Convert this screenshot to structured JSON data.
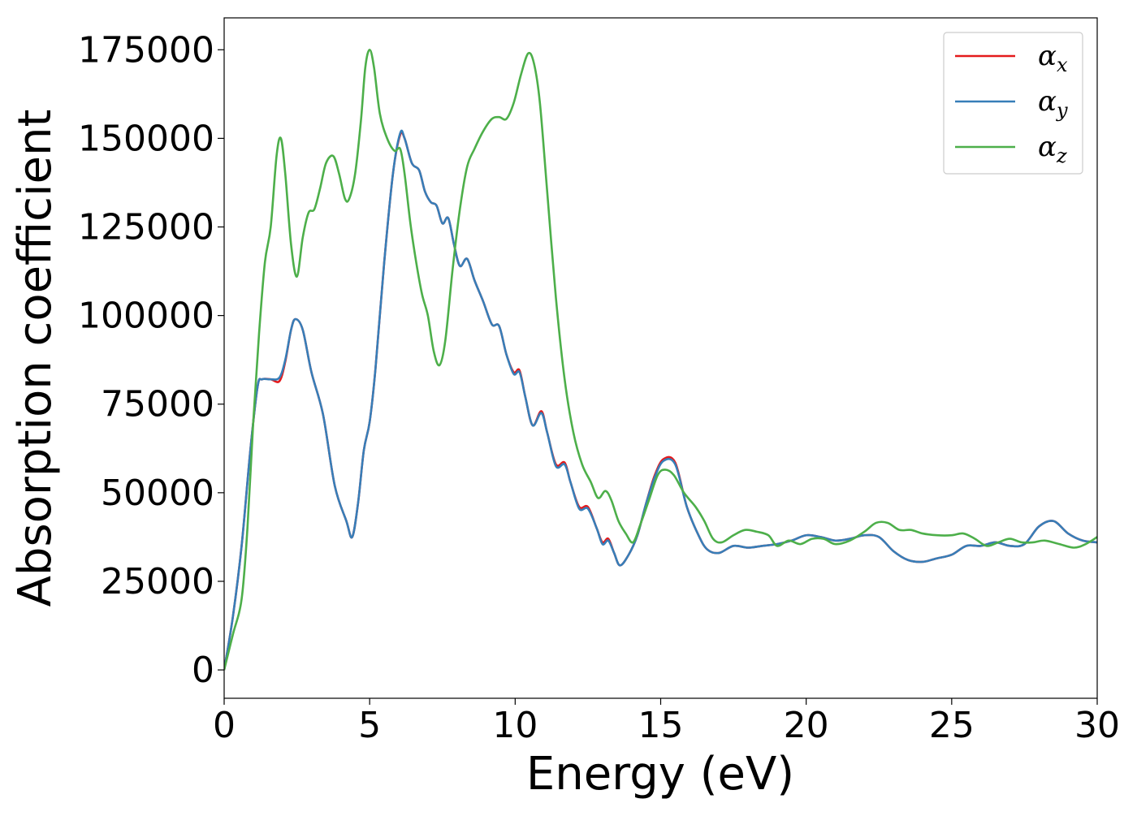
{
  "chart_data": {
    "type": "line",
    "title": "",
    "xlabel": "Energy (eV)",
    "ylabel": "Absorption coefficient",
    "xlim": [
      0,
      30
    ],
    "ylim": [
      -8000,
      184000
    ],
    "xticks": [
      0,
      5,
      10,
      15,
      20,
      25,
      30
    ],
    "xtick_labels": [
      "0",
      "5",
      "10",
      "15",
      "20",
      "25",
      "30"
    ],
    "yticks": [
      0,
      25000,
      50000,
      75000,
      100000,
      125000,
      150000,
      175000
    ],
    "ytick_labels": [
      "0",
      "25000",
      "50000",
      "75000",
      "100000",
      "125000",
      "150000",
      "175000"
    ],
    "grid": false,
    "legend_position": "top-right",
    "series": [
      {
        "name": "α_x",
        "legend_symbol": "α",
        "legend_subscript": "x",
        "color": "#e41a1c",
        "points": [
          [
            0,
            0
          ],
          [
            0.3,
            15000
          ],
          [
            0.6,
            35000
          ],
          [
            0.9,
            62000
          ],
          [
            1.15,
            80000
          ],
          [
            1.3,
            82000
          ],
          [
            1.6,
            82000
          ],
          [
            1.9,
            81500
          ],
          [
            2.1,
            87000
          ],
          [
            2.3,
            96000
          ],
          [
            2.45,
            99000
          ],
          [
            2.7,
            96000
          ],
          [
            3.0,
            84000
          ],
          [
            3.4,
            72000
          ],
          [
            3.8,
            52000
          ],
          [
            4.2,
            42000
          ],
          [
            4.4,
            37500
          ],
          [
            4.6,
            47000
          ],
          [
            4.8,
            62000
          ],
          [
            5.0,
            70000
          ],
          [
            5.2,
            85000
          ],
          [
            5.5,
            115000
          ],
          [
            5.8,
            140000
          ],
          [
            6.05,
            151000
          ],
          [
            6.2,
            150000
          ],
          [
            6.45,
            143000
          ],
          [
            6.7,
            141000
          ],
          [
            6.9,
            135000
          ],
          [
            7.1,
            132000
          ],
          [
            7.3,
            131000
          ],
          [
            7.5,
            126000
          ],
          [
            7.7,
            127500
          ],
          [
            7.9,
            120000
          ],
          [
            8.1,
            114000
          ],
          [
            8.35,
            116000
          ],
          [
            8.6,
            110000
          ],
          [
            8.9,
            104000
          ],
          [
            9.2,
            97500
          ],
          [
            9.45,
            97000
          ],
          [
            9.7,
            89000
          ],
          [
            9.95,
            84000
          ],
          [
            10.15,
            84500
          ],
          [
            10.35,
            77000
          ],
          [
            10.6,
            69000
          ],
          [
            10.9,
            73000
          ],
          [
            11.1,
            67000
          ],
          [
            11.4,
            58000
          ],
          [
            11.7,
            58500
          ],
          [
            11.9,
            53000
          ],
          [
            12.2,
            46000
          ],
          [
            12.5,
            46000
          ],
          [
            12.8,
            40000
          ],
          [
            13.0,
            36000
          ],
          [
            13.2,
            37000
          ],
          [
            13.4,
            33000
          ],
          [
            13.6,
            29500
          ],
          [
            13.9,
            32500
          ],
          [
            14.2,
            38000
          ],
          [
            14.5,
            47000
          ],
          [
            14.8,
            55000
          ],
          [
            15.1,
            59500
          ],
          [
            15.5,
            58500
          ],
          [
            15.9,
            46000
          ],
          [
            16.3,
            38000
          ],
          [
            16.6,
            34000
          ],
          [
            17.0,
            33000
          ],
          [
            17.5,
            35000
          ],
          [
            18.0,
            34500
          ],
          [
            18.5,
            35000
          ],
          [
            19.0,
            35500
          ],
          [
            19.5,
            36500
          ],
          [
            20.0,
            38000
          ],
          [
            20.5,
            37500
          ],
          [
            21.0,
            36500
          ],
          [
            21.5,
            37000
          ],
          [
            22.0,
            38000
          ],
          [
            22.5,
            37500
          ],
          [
            23.0,
            33500
          ],
          [
            23.5,
            31000
          ],
          [
            24.0,
            30500
          ],
          [
            24.5,
            31500
          ],
          [
            25.0,
            32500
          ],
          [
            25.5,
            35000
          ],
          [
            26.0,
            35000
          ],
          [
            26.5,
            36000
          ],
          [
            27.0,
            35000
          ],
          [
            27.5,
            35500
          ],
          [
            28.0,
            40500
          ],
          [
            28.5,
            42000
          ],
          [
            29.0,
            38500
          ],
          [
            29.5,
            36500
          ],
          [
            30.0,
            36000
          ]
        ]
      },
      {
        "name": "α_y",
        "legend_symbol": "α",
        "legend_subscript": "y",
        "color": "#377eb8",
        "points": [
          [
            0,
            0
          ],
          [
            0.3,
            15000
          ],
          [
            0.6,
            35000
          ],
          [
            0.9,
            62000
          ],
          [
            1.15,
            80000
          ],
          [
            1.3,
            82000
          ],
          [
            1.6,
            82000
          ],
          [
            1.9,
            82500
          ],
          [
            2.1,
            87500
          ],
          [
            2.3,
            96000
          ],
          [
            2.45,
            99000
          ],
          [
            2.7,
            96000
          ],
          [
            3.0,
            84000
          ],
          [
            3.4,
            72000
          ],
          [
            3.8,
            52000
          ],
          [
            4.2,
            42000
          ],
          [
            4.4,
            37500
          ],
          [
            4.6,
            47000
          ],
          [
            4.8,
            62000
          ],
          [
            5.0,
            70000
          ],
          [
            5.2,
            85000
          ],
          [
            5.5,
            115000
          ],
          [
            5.8,
            140000
          ],
          [
            6.05,
            151500
          ],
          [
            6.2,
            150000
          ],
          [
            6.45,
            143000
          ],
          [
            6.7,
            141000
          ],
          [
            6.9,
            135000
          ],
          [
            7.1,
            132000
          ],
          [
            7.3,
            131000
          ],
          [
            7.5,
            126000
          ],
          [
            7.7,
            127500
          ],
          [
            7.9,
            120000
          ],
          [
            8.1,
            114000
          ],
          [
            8.35,
            116000
          ],
          [
            8.6,
            110000
          ],
          [
            8.9,
            104000
          ],
          [
            9.2,
            97500
          ],
          [
            9.45,
            97000
          ],
          [
            9.7,
            89000
          ],
          [
            9.95,
            83500
          ],
          [
            10.15,
            84000
          ],
          [
            10.35,
            77000
          ],
          [
            10.6,
            69000
          ],
          [
            10.9,
            72500
          ],
          [
            11.1,
            67000
          ],
          [
            11.4,
            57500
          ],
          [
            11.7,
            58000
          ],
          [
            11.9,
            53000
          ],
          [
            12.2,
            45500
          ],
          [
            12.5,
            45500
          ],
          [
            12.8,
            40000
          ],
          [
            13.0,
            35500
          ],
          [
            13.2,
            36500
          ],
          [
            13.4,
            33000
          ],
          [
            13.6,
            29500
          ],
          [
            13.9,
            32500
          ],
          [
            14.2,
            38000
          ],
          [
            14.5,
            47000
          ],
          [
            14.8,
            54500
          ],
          [
            15.1,
            59000
          ],
          [
            15.5,
            58000
          ],
          [
            15.9,
            46000
          ],
          [
            16.3,
            38000
          ],
          [
            16.6,
            34000
          ],
          [
            17.0,
            33000
          ],
          [
            17.5,
            35000
          ],
          [
            18.0,
            34500
          ],
          [
            18.5,
            35000
          ],
          [
            19.0,
            35500
          ],
          [
            19.5,
            36500
          ],
          [
            20.0,
            38000
          ],
          [
            20.5,
            37500
          ],
          [
            21.0,
            36500
          ],
          [
            21.5,
            37000
          ],
          [
            22.0,
            38000
          ],
          [
            22.5,
            37500
          ],
          [
            23.0,
            33500
          ],
          [
            23.5,
            31000
          ],
          [
            24.0,
            30500
          ],
          [
            24.5,
            31500
          ],
          [
            25.0,
            32500
          ],
          [
            25.5,
            35000
          ],
          [
            26.0,
            35000
          ],
          [
            26.5,
            36000
          ],
          [
            27.0,
            35000
          ],
          [
            27.5,
            35500
          ],
          [
            28.0,
            40500
          ],
          [
            28.5,
            42000
          ],
          [
            29.0,
            38500
          ],
          [
            29.5,
            36500
          ],
          [
            30.0,
            36000
          ]
        ]
      },
      {
        "name": "α_z",
        "legend_symbol": "α",
        "legend_subscript": "z",
        "color": "#4daf4a",
        "points": [
          [
            0,
            0
          ],
          [
            0.3,
            10000
          ],
          [
            0.6,
            20000
          ],
          [
            0.8,
            40000
          ],
          [
            1.0,
            70000
          ],
          [
            1.2,
            95000
          ],
          [
            1.4,
            115000
          ],
          [
            1.6,
            125000
          ],
          [
            1.8,
            145000
          ],
          [
            1.95,
            150000
          ],
          [
            2.1,
            140000
          ],
          [
            2.3,
            120000
          ],
          [
            2.5,
            111000
          ],
          [
            2.7,
            122000
          ],
          [
            2.9,
            129000
          ],
          [
            3.1,
            130000
          ],
          [
            3.3,
            136000
          ],
          [
            3.5,
            143000
          ],
          [
            3.75,
            145000
          ],
          [
            3.95,
            140000
          ],
          [
            4.15,
            133000
          ],
          [
            4.3,
            133000
          ],
          [
            4.5,
            140000
          ],
          [
            4.7,
            155000
          ],
          [
            4.85,
            170000
          ],
          [
            5.0,
            175000
          ],
          [
            5.15,
            170000
          ],
          [
            5.35,
            157000
          ],
          [
            5.6,
            150000
          ],
          [
            5.85,
            146500
          ],
          [
            6.05,
            147000
          ],
          [
            6.2,
            140000
          ],
          [
            6.4,
            126000
          ],
          [
            6.6,
            115000
          ],
          [
            6.8,
            106000
          ],
          [
            7.0,
            100000
          ],
          [
            7.2,
            90000
          ],
          [
            7.4,
            86000
          ],
          [
            7.6,
            93000
          ],
          [
            7.85,
            113000
          ],
          [
            8.1,
            130000
          ],
          [
            8.35,
            142000
          ],
          [
            8.6,
            147000
          ],
          [
            8.9,
            152000
          ],
          [
            9.2,
            155500
          ],
          [
            9.45,
            156000
          ],
          [
            9.7,
            155500
          ],
          [
            9.95,
            160000
          ],
          [
            10.2,
            168000
          ],
          [
            10.45,
            174000
          ],
          [
            10.65,
            171000
          ],
          [
            10.85,
            160000
          ],
          [
            11.1,
            135000
          ],
          [
            11.4,
            105000
          ],
          [
            11.7,
            82000
          ],
          [
            12.0,
            67000
          ],
          [
            12.3,
            58000
          ],
          [
            12.6,
            53000
          ],
          [
            12.85,
            48500
          ],
          [
            13.1,
            50500
          ],
          [
            13.3,
            48000
          ],
          [
            13.55,
            42000
          ],
          [
            13.8,
            38500
          ],
          [
            14.05,
            36000
          ],
          [
            14.3,
            41000
          ],
          [
            14.6,
            48000
          ],
          [
            14.9,
            55000
          ],
          [
            15.15,
            56500
          ],
          [
            15.45,
            55000
          ],
          [
            15.8,
            50000
          ],
          [
            16.2,
            46000
          ],
          [
            16.5,
            42000
          ],
          [
            16.8,
            37000
          ],
          [
            17.1,
            36000
          ],
          [
            17.5,
            38000
          ],
          [
            17.9,
            39500
          ],
          [
            18.3,
            39000
          ],
          [
            18.7,
            38000
          ],
          [
            19.0,
            35000
          ],
          [
            19.4,
            36500
          ],
          [
            19.8,
            35500
          ],
          [
            20.2,
            37000
          ],
          [
            20.6,
            37000
          ],
          [
            21.0,
            35500
          ],
          [
            21.5,
            36500
          ],
          [
            22.0,
            39000
          ],
          [
            22.4,
            41500
          ],
          [
            22.8,
            41500
          ],
          [
            23.2,
            39500
          ],
          [
            23.6,
            39500
          ],
          [
            24.0,
            38500
          ],
          [
            24.5,
            38000
          ],
          [
            25.0,
            38000
          ],
          [
            25.4,
            38500
          ],
          [
            25.8,
            37000
          ],
          [
            26.2,
            35000
          ],
          [
            26.6,
            36000
          ],
          [
            27.0,
            37000
          ],
          [
            27.4,
            36000
          ],
          [
            27.8,
            36000
          ],
          [
            28.2,
            36500
          ],
          [
            28.7,
            35500
          ],
          [
            29.2,
            34500
          ],
          [
            29.6,
            35500
          ],
          [
            30.0,
            37500
          ]
        ]
      }
    ]
  }
}
